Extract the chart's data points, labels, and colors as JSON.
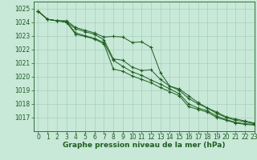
{
  "x": [
    0,
    1,
    2,
    3,
    4,
    5,
    6,
    7,
    8,
    9,
    10,
    11,
    12,
    13,
    14,
    15,
    16,
    17,
    18,
    19,
    20,
    21,
    22,
    23
  ],
  "series1": [
    1024.8,
    1024.2,
    1024.1,
    1024.1,
    1023.6,
    1023.4,
    1023.2,
    1022.9,
    1022.95,
    1022.9,
    1022.5,
    1022.55,
    1022.15,
    1020.3,
    1019.3,
    1019.1,
    1018.6,
    1018.1,
    1017.7,
    1017.4,
    1017.05,
    1016.9,
    1016.75,
    1016.6
  ],
  "series2": [
    1024.8,
    1024.2,
    1024.1,
    1024.0,
    1023.5,
    1023.3,
    1023.1,
    1022.7,
    1021.3,
    1021.2,
    1020.7,
    1020.45,
    1020.5,
    1019.8,
    1019.3,
    1019.0,
    1018.4,
    1018.0,
    1017.7,
    1017.3,
    1017.0,
    1016.8,
    1016.7,
    1016.55
  ],
  "series3": [
    1024.8,
    1024.2,
    1024.1,
    1024.0,
    1023.2,
    1023.0,
    1022.8,
    1022.5,
    1021.2,
    1020.75,
    1020.35,
    1020.1,
    1019.75,
    1019.45,
    1019.1,
    1018.75,
    1018.0,
    1017.7,
    1017.5,
    1017.1,
    1016.85,
    1016.65,
    1016.55,
    1016.5
  ],
  "series4": [
    1024.8,
    1024.2,
    1024.1,
    1024.0,
    1023.1,
    1022.95,
    1022.75,
    1022.4,
    1020.55,
    1020.4,
    1020.05,
    1019.8,
    1019.55,
    1019.2,
    1018.9,
    1018.6,
    1017.8,
    1017.6,
    1017.4,
    1017.0,
    1016.8,
    1016.6,
    1016.5,
    1016.45
  ],
  "bg_color": "#c8e8d8",
  "grid_color": "#a0c8b8",
  "line_color": "#1e5e1e",
  "xlabel": "Graphe pression niveau de la mer (hPa)",
  "ylim_min": 1016.0,
  "ylim_max": 1025.5,
  "xlim_min": -0.5,
  "xlim_max": 23,
  "yticks": [
    1017,
    1018,
    1019,
    1020,
    1021,
    1022,
    1023,
    1024,
    1025
  ],
  "tick_fontsize": 5.5,
  "xlabel_fontsize": 6.5
}
